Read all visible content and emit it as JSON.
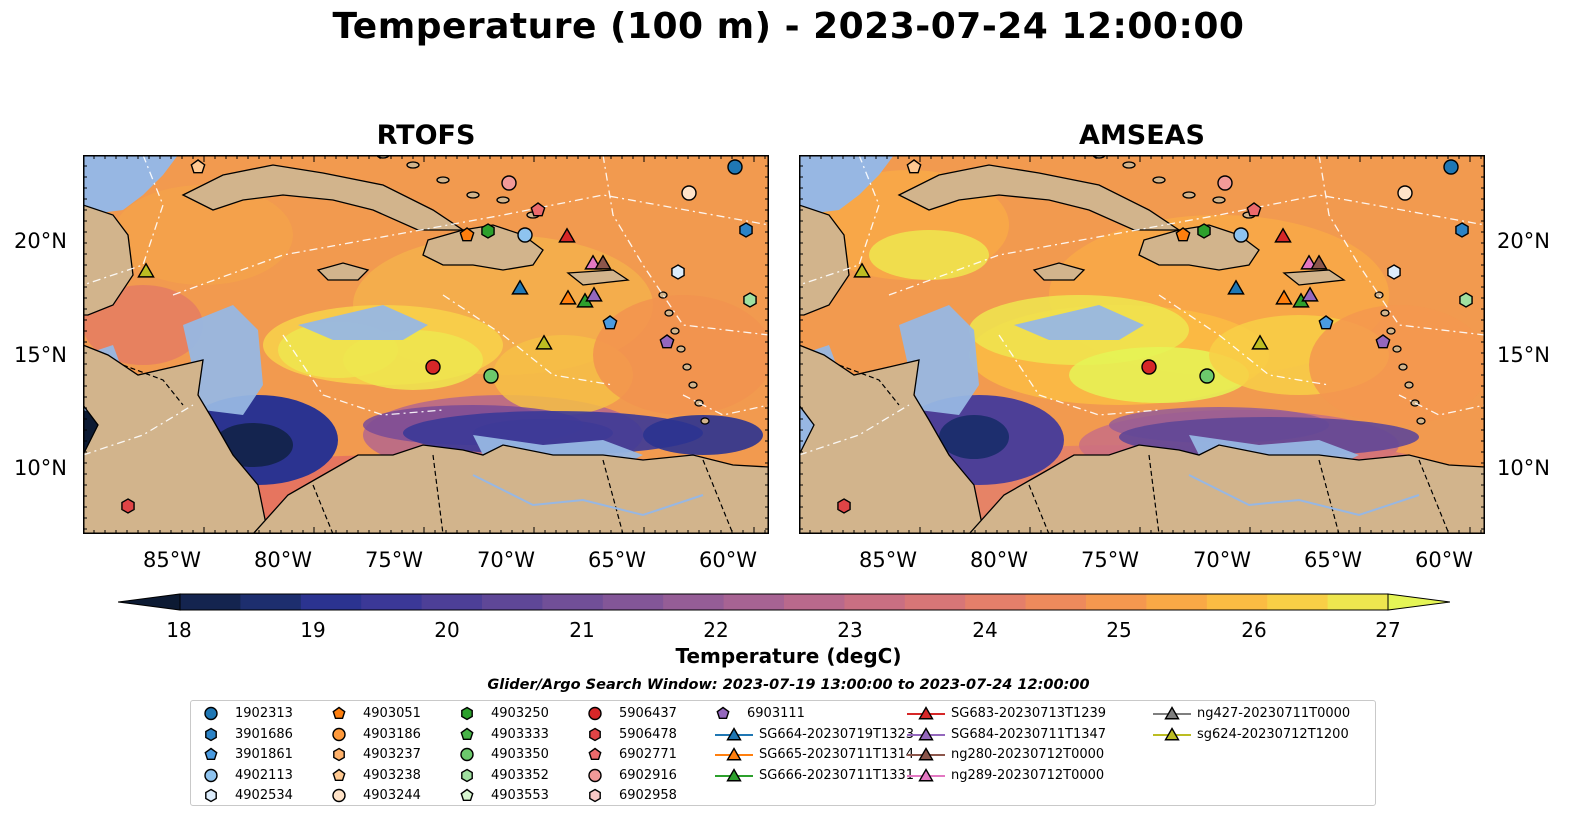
{
  "title": "Temperature (100 m) - 2023-07-24 12:00:00",
  "panels": [
    {
      "title": "RTOFS"
    },
    {
      "title": "AMSEAS"
    }
  ],
  "lat_labels": [
    "20°N",
    "15°N",
    "10°N"
  ],
  "lon_labels": [
    "85°W",
    "80°W",
    "75°W",
    "70°W",
    "65°W",
    "60°W"
  ],
  "colorbar": {
    "label": "Temperature (degC)",
    "ticks": [
      "18",
      "19",
      "20",
      "21",
      "22",
      "23",
      "24",
      "25",
      "26",
      "27"
    ],
    "colors": [
      "#0c1a33",
      "#14244f",
      "#1d2e6e",
      "#2b3390",
      "#3b3897",
      "#4d3f97",
      "#5f4797",
      "#714f98",
      "#835698",
      "#955d96",
      "#a76393",
      "#b9698c",
      "#c96f82",
      "#d77677",
      "#e47f6a",
      "#ee8a5c",
      "#f5984f",
      "#f9a946",
      "#fbbc43",
      "#f8cf46",
      "#eee64f",
      "#e5f556"
    ]
  },
  "colors": {
    "land": "#d2b48c",
    "shallow_water": "#97b7e3",
    "deep": "#0c1a33",
    "warm": "#eee64f"
  },
  "legend_title": "Glider/Argo Search Window: 2023-07-19 13:00:00 to 2023-07-24 12:00:00",
  "legend": [
    {
      "label": "1902313",
      "marker": "circle",
      "color": "#1f77b4"
    },
    {
      "label": "3901686",
      "marker": "hexagon",
      "color": "#2c83c6"
    },
    {
      "label": "3901861",
      "marker": "pentagon",
      "color": "#4a9be0"
    },
    {
      "label": "4902113",
      "marker": "circle",
      "color": "#8ec3ef"
    },
    {
      "label": "4902534",
      "marker": "hexagon",
      "color": "#dcecfb"
    },
    {
      "label": "4903051",
      "marker": "pentagon",
      "color": "#ff7f0e"
    },
    {
      "label": "4903186",
      "marker": "circle",
      "color": "#ff9a3c"
    },
    {
      "label": "4903237",
      "marker": "hexagon",
      "color": "#ffb26b"
    },
    {
      "label": "4903238",
      "marker": "pentagon",
      "color": "#ffc991"
    },
    {
      "label": "4903244",
      "marker": "circle",
      "color": "#ffe3c8"
    },
    {
      "label": "4903250",
      "marker": "hexagon",
      "color": "#2ca02c"
    },
    {
      "label": "4903333",
      "marker": "pentagon",
      "color": "#48b548"
    },
    {
      "label": "4903350",
      "marker": "circle",
      "color": "#6cc96c"
    },
    {
      "label": "4903352",
      "marker": "hexagon",
      "color": "#a0e0a0"
    },
    {
      "label": "4903553",
      "marker": "pentagon",
      "color": "#d8f6d0"
    },
    {
      "label": "5906437",
      "marker": "circle",
      "color": "#d62728"
    },
    {
      "label": "5906478",
      "marker": "hexagon",
      "color": "#e04446"
    },
    {
      "label": "6902771",
      "marker": "pentagon",
      "color": "#ec6a6c"
    },
    {
      "label": "6902916",
      "marker": "circle",
      "color": "#f29a98"
    },
    {
      "label": "6902958",
      "marker": "hexagon",
      "color": "#f9c8c6"
    },
    {
      "label": "6903111",
      "marker": "pentagon",
      "color": "#9467bd"
    },
    {
      "label": "SG664-20230719T1323",
      "marker": "triangle-line",
      "color": "#1f77b4"
    },
    {
      "label": "SG665-20230711T1314",
      "marker": "triangle-line",
      "color": "#ff7f0e"
    },
    {
      "label": "SG666-20230711T1331",
      "marker": "triangle-line",
      "color": "#2ca02c"
    },
    {
      "label": "SG683-20230713T1239",
      "marker": "triangle-line",
      "color": "#d62728"
    },
    {
      "label": "SG684-20230711T1347",
      "marker": "triangle-line",
      "color": "#9467bd"
    },
    {
      "label": "ng280-20230712T0000",
      "marker": "triangle-line",
      "color": "#8c564b"
    },
    {
      "label": "ng289-20230712T0000",
      "marker": "triangle-line",
      "color": "#e377c2"
    },
    {
      "label": "ng427-20230711T0000",
      "marker": "triangle-line",
      "color": "#7f7f7f"
    },
    {
      "label": "sg624-20230712T1200",
      "marker": "triangle-line",
      "color": "#bcbd22"
    }
  ]
}
